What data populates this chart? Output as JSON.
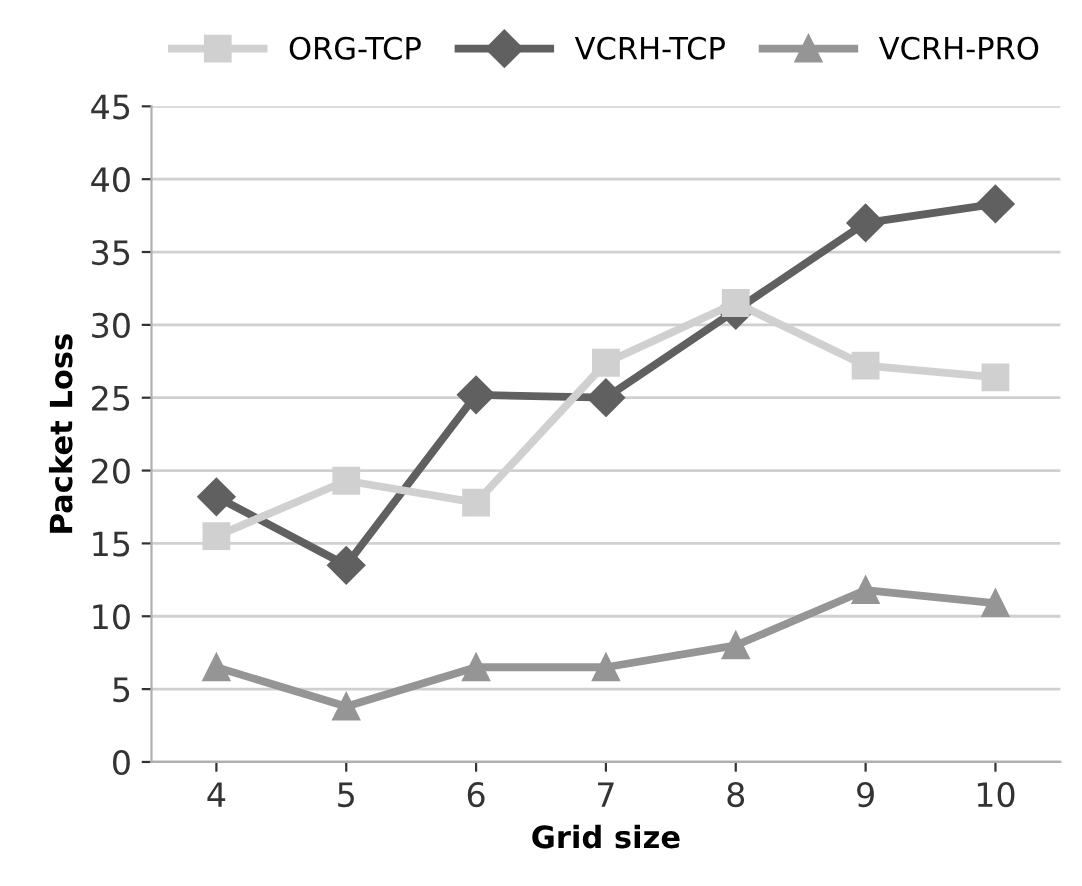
{
  "chart_data": {
    "type": "line",
    "xlabel": "Grid size",
    "ylabel": "Packet Loss",
    "categories": [
      "4",
      "5",
      "6",
      "7",
      "8",
      "9",
      "10"
    ],
    "series": [
      {
        "name": "ORG-TCP",
        "color": "#d0d0d0",
        "marker": "square",
        "values": [
          15.5,
          19.3,
          17.8,
          27.4,
          31.5,
          27.2,
          26.4
        ]
      },
      {
        "name": "VCRH-TCP",
        "color": "#606060",
        "marker": "diamond",
        "values": [
          18.2,
          13.5,
          25.2,
          25.0,
          31.0,
          37.0,
          38.3
        ]
      },
      {
        "name": "VCRH-PRO",
        "color": "#959595",
        "marker": "triangle",
        "values": [
          6.5,
          3.8,
          6.5,
          6.5,
          8.0,
          11.8,
          10.9
        ]
      }
    ],
    "ylim": [
      0,
      45
    ],
    "yticks": [
      0,
      5,
      10,
      15,
      20,
      25,
      30,
      35,
      40,
      45
    ],
    "grid": "y",
    "legend": "top",
    "line_style": "solid"
  }
}
